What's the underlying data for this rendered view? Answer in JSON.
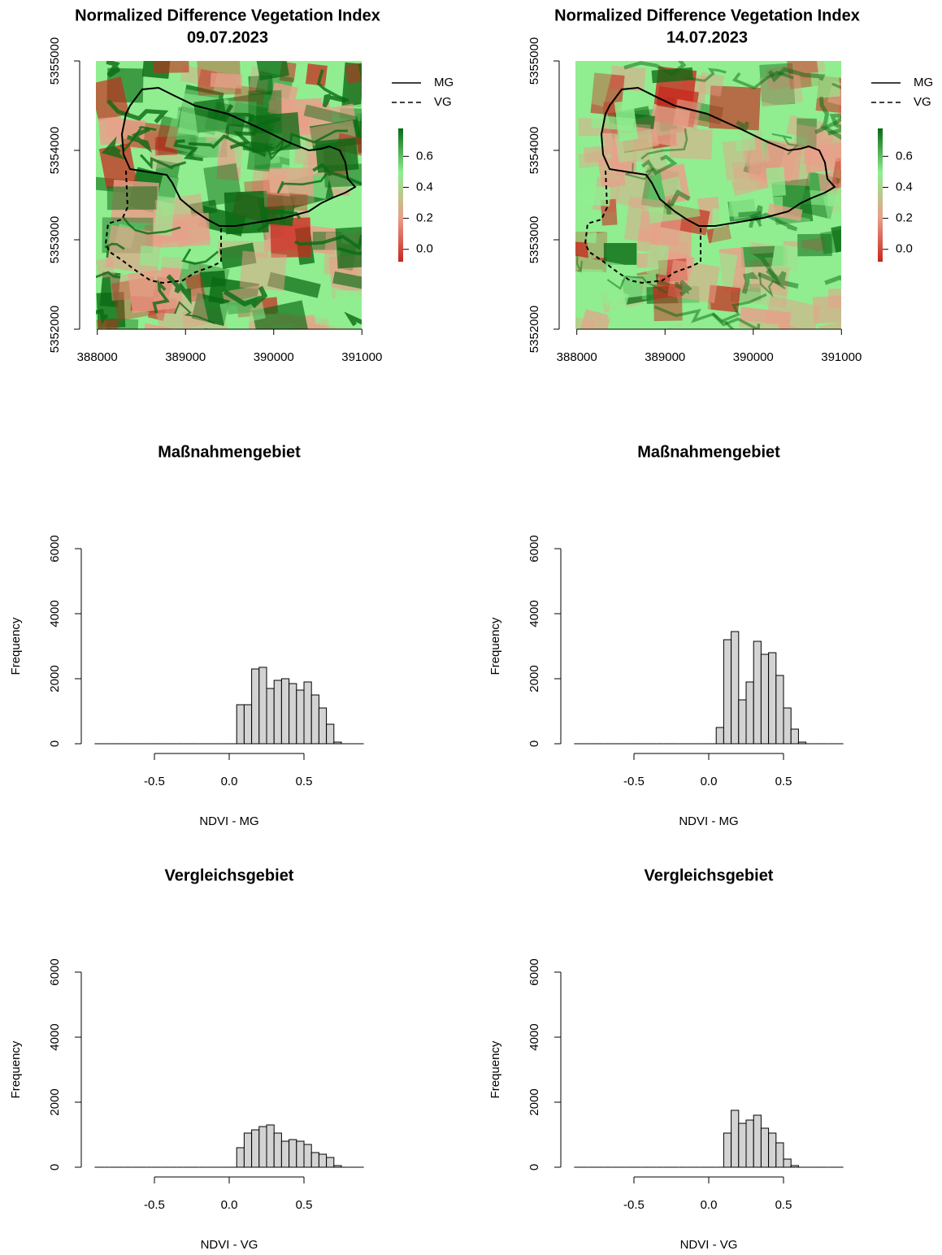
{
  "chart_data": [
    {
      "type": "raster",
      "title": "Normalized Difference Vegetation Index",
      "subtitle": "09.07.2023",
      "xlim": [
        387800,
        391200
      ],
      "xticks": [
        388000,
        389000,
        390000,
        391000
      ],
      "ylim": [
        5352000,
        5355000
      ],
      "yticks": [
        5352000,
        5353000,
        5354000,
        5355000
      ],
      "legend": [
        {
          "name": "MG",
          "linestyle": "solid"
        },
        {
          "name": "VG",
          "linestyle": "dashed"
        }
      ],
      "colorbar": {
        "lim": [
          -0.08,
          0.78
        ],
        "ticks": [
          {
            "value": 0,
            "label": "0.0"
          },
          0.2,
          0.4,
          0.6
        ],
        "colors": [
          "#c8281e",
          "#e8a08a",
          "#90ee90",
          "#0a6a14"
        ]
      }
    },
    {
      "type": "raster",
      "title": "Normalized Difference Vegetation Index",
      "subtitle": "14.07.2023",
      "xlim": [
        387800,
        391200
      ],
      "xticks": [
        388000,
        389000,
        390000,
        391000
      ],
      "ylim": [
        5352000,
        5355000
      ],
      "yticks": [
        5352000,
        5353000,
        5354000,
        5355000
      ],
      "legend": [
        {
          "name": "MG",
          "linestyle": "solid"
        },
        {
          "name": "VG",
          "linestyle": "dashed"
        }
      ],
      "colorbar": {
        "lim": [
          -0.08,
          0.78
        ],
        "ticks": [
          {
            "value": 0,
            "label": "0.0"
          },
          0.2,
          0.4,
          0.6
        ],
        "colors": [
          "#c8281e",
          "#e8a08a",
          "#90ee90",
          "#0a6a14"
        ]
      }
    },
    {
      "type": "histogram",
      "title": "Maßnahmengebiet",
      "xlabel": "NDVI - MG",
      "ylabel": "Frequency",
      "color": "#d3d3d3",
      "bins": [
        -0.9,
        -0.85,
        -0.8,
        -0.75,
        -0.7,
        -0.65,
        -0.6,
        -0.55,
        -0.5,
        -0.45,
        -0.4,
        -0.35,
        -0.3,
        -0.25,
        -0.2,
        -0.15,
        -0.1,
        -0.05,
        0,
        0.05,
        0.1,
        0.15,
        0.2,
        0.25,
        0.3,
        0.35,
        0.4,
        0.45,
        0.5,
        0.55,
        0.6,
        0.65,
        0.7,
        0.75,
        0.8,
        0.85,
        0.9
      ],
      "counts": [
        0,
        0,
        0,
        0,
        0,
        0,
        0,
        0,
        0,
        0,
        0,
        0,
        0,
        0,
        0,
        0,
        0,
        0,
        0,
        1200,
        1200,
        2300,
        2350,
        1700,
        1950,
        2000,
        1850,
        1650,
        1900,
        1500,
        1100,
        600,
        50,
        0,
        0,
        0
      ],
      "xlim": [
        -0.97,
        0.97
      ],
      "xticks": [
        -0.5,
        {
          "value": 0,
          "label": "0.0"
        },
        0.5
      ],
      "ylim": [
        0,
        6000
      ],
      "yticks": [
        0,
        2000,
        4000,
        6000
      ]
    },
    {
      "type": "histogram",
      "title": "Maßnahmengebiet",
      "xlabel": "NDVI - MG",
      "ylabel": "Frequency",
      "color": "#d3d3d3",
      "bins": [
        -0.9,
        -0.85,
        -0.8,
        -0.75,
        -0.7,
        -0.65,
        -0.6,
        -0.55,
        -0.5,
        -0.45,
        -0.4,
        -0.35,
        -0.3,
        -0.25,
        -0.2,
        -0.15,
        -0.1,
        -0.05,
        0,
        0.05,
        0.1,
        0.15,
        0.2,
        0.25,
        0.3,
        0.35,
        0.4,
        0.45,
        0.5,
        0.55,
        0.6,
        0.65,
        0.7,
        0.75,
        0.8,
        0.85,
        0.9
      ],
      "counts": [
        0,
        0,
        0,
        0,
        0,
        0,
        0,
        0,
        0,
        0,
        0,
        0,
        0,
        0,
        0,
        0,
        0,
        0,
        0,
        500,
        3200,
        3450,
        1350,
        1900,
        3150,
        2750,
        2800,
        2100,
        1100,
        450,
        50,
        0,
        0,
        0,
        0,
        0
      ],
      "xlim": [
        -0.97,
        0.97
      ],
      "xticks": [
        -0.5,
        {
          "value": 0,
          "label": "0.0"
        },
        0.5
      ],
      "ylim": [
        0,
        6000
      ],
      "yticks": [
        0,
        2000,
        4000,
        6000
      ]
    },
    {
      "type": "histogram",
      "title": "Vergleichsgebiet",
      "xlabel": "NDVI - VG",
      "ylabel": "Frequency",
      "color": "#d3d3d3",
      "bins": [
        -0.9,
        -0.85,
        -0.8,
        -0.75,
        -0.7,
        -0.65,
        -0.6,
        -0.55,
        -0.5,
        -0.45,
        -0.4,
        -0.35,
        -0.3,
        -0.25,
        -0.2,
        -0.15,
        -0.1,
        -0.05,
        0,
        0.05,
        0.1,
        0.15,
        0.2,
        0.25,
        0.3,
        0.35,
        0.4,
        0.45,
        0.5,
        0.55,
        0.6,
        0.65,
        0.7,
        0.75,
        0.8,
        0.85,
        0.9
      ],
      "counts": [
        0,
        0,
        0,
        0,
        0,
        0,
        0,
        0,
        0,
        0,
        0,
        0,
        0,
        0,
        0,
        0,
        0,
        0,
        0,
        600,
        1050,
        1150,
        1250,
        1300,
        1050,
        800,
        850,
        800,
        700,
        450,
        400,
        300,
        50,
        0,
        0,
        0
      ],
      "xlim": [
        -0.97,
        0.97
      ],
      "xticks": [
        -0.5,
        {
          "value": 0,
          "label": "0.0"
        },
        0.5
      ],
      "ylim": [
        0,
        6000
      ],
      "yticks": [
        0,
        2000,
        4000,
        6000
      ]
    },
    {
      "type": "histogram",
      "title": "Vergleichsgebiet",
      "xlabel": "NDVI - VG",
      "ylabel": "Frequency",
      "color": "#d3d3d3",
      "bins": [
        -0.9,
        -0.85,
        -0.8,
        -0.75,
        -0.7,
        -0.65,
        -0.6,
        -0.55,
        -0.5,
        -0.45,
        -0.4,
        -0.35,
        -0.3,
        -0.25,
        -0.2,
        -0.15,
        -0.1,
        -0.05,
        0,
        0.05,
        0.1,
        0.15,
        0.2,
        0.25,
        0.3,
        0.35,
        0.4,
        0.45,
        0.5,
        0.55,
        0.6,
        0.65,
        0.7,
        0.75,
        0.8,
        0.85,
        0.9
      ],
      "counts": [
        0,
        0,
        0,
        0,
        0,
        0,
        0,
        0,
        0,
        0,
        0,
        0,
        0,
        0,
        0,
        0,
        0,
        0,
        0,
        0,
        1050,
        1750,
        1350,
        1450,
        1600,
        1200,
        1050,
        750,
        250,
        50,
        0,
        0,
        0,
        0,
        0,
        0
      ],
      "xlim": [
        -0.97,
        0.97
      ],
      "xticks": [
        -0.5,
        {
          "value": 0,
          "label": "0.0"
        },
        0.5
      ],
      "ylim": [
        0,
        6000
      ],
      "yticks": [
        0,
        2000,
        4000,
        6000
      ]
    }
  ]
}
